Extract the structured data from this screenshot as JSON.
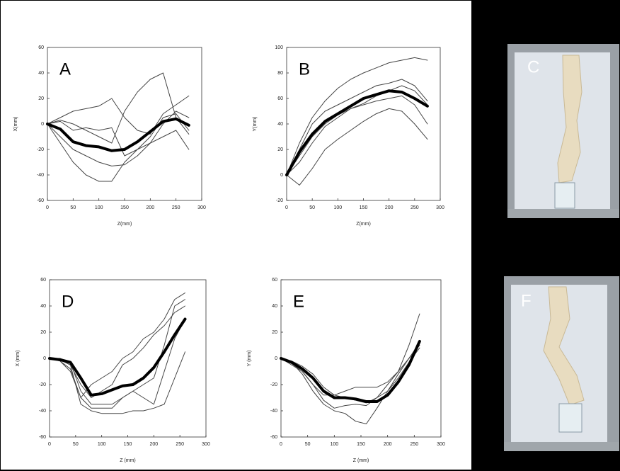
{
  "chart_data": [
    {
      "type": "line",
      "label": "A",
      "xlabel": "Z(mm)",
      "ylabel": "X(mm)",
      "xlim": [
        0,
        300
      ],
      "xticks": [
        0,
        50,
        100,
        150,
        200,
        250,
        300
      ],
      "ylim": [
        -60,
        60
      ],
      "yticks": [
        -60,
        -40,
        -20,
        0,
        20,
        40,
        60
      ],
      "x": [
        0,
        25,
        50,
        75,
        100,
        125,
        150,
        175,
        200,
        225,
        250,
        275
      ],
      "series": [
        {
          "color": "#444444",
          "width": 1,
          "values": [
            0,
            3,
            0,
            -5,
            -10,
            -15,
            10,
            25,
            35,
            40,
            5,
            -8
          ]
        },
        {
          "color": "#444444",
          "width": 1,
          "values": [
            0,
            -15,
            -30,
            -40,
            -45,
            -45,
            -30,
            -20,
            -15,
            -10,
            -5,
            -20
          ]
        },
        {
          "color": "#444444",
          "width": 1,
          "values": [
            0,
            5,
            10,
            12,
            14,
            20,
            5,
            -5,
            -8,
            8,
            15,
            22
          ]
        },
        {
          "color": "#444444",
          "width": 1,
          "values": [
            0,
            -10,
            -20,
            -25,
            -30,
            -33,
            -32,
            -25,
            -15,
            0,
            10,
            5
          ]
        },
        {
          "color": "#444444",
          "width": 1,
          "values": [
            0,
            2,
            -5,
            -3,
            -5,
            -3,
            -25,
            -20,
            -10,
            5,
            8,
            -5
          ]
        },
        {
          "color": "#000000",
          "width": 4,
          "values": [
            0,
            -4,
            -14,
            -17,
            -18,
            -21,
            -20,
            -14,
            -6,
            2,
            4,
            -1
          ]
        }
      ]
    },
    {
      "type": "line",
      "label": "B",
      "xlabel": "Z(mm)",
      "ylabel": "Y(mm)",
      "xlim": [
        0,
        300
      ],
      "xticks": [
        0,
        50,
        100,
        150,
        200,
        250,
        300
      ],
      "ylim": [
        -20,
        100
      ],
      "yticks": [
        -20,
        0,
        20,
        40,
        60,
        80,
        100
      ],
      "x": [
        0,
        25,
        50,
        75,
        100,
        125,
        150,
        175,
        200,
        225,
        250,
        275
      ],
      "series": [
        {
          "color": "#444444",
          "width": 1,
          "values": [
            0,
            25,
            45,
            58,
            68,
            75,
            80,
            84,
            88,
            90,
            92,
            90
          ]
        },
        {
          "color": "#444444",
          "width": 1,
          "values": [
            0,
            -8,
            5,
            20,
            28,
            35,
            42,
            48,
            52,
            50,
            40,
            28
          ]
        },
        {
          "color": "#444444",
          "width": 1,
          "values": [
            0,
            20,
            40,
            50,
            55,
            60,
            65,
            70,
            72,
            75,
            70,
            58
          ]
        },
        {
          "color": "#444444",
          "width": 1,
          "values": [
            0,
            10,
            25,
            38,
            45,
            52,
            55,
            58,
            60,
            62,
            55,
            40
          ]
        },
        {
          "color": "#444444",
          "width": 1,
          "values": [
            0,
            15,
            30,
            40,
            47,
            52,
            56,
            62,
            66,
            70,
            66,
            55
          ]
        },
        {
          "color": "#000000",
          "width": 4,
          "values": [
            0,
            18,
            32,
            42,
            48,
            54,
            60,
            63,
            66,
            65,
            60,
            54
          ]
        }
      ]
    },
    {
      "type": "line",
      "label": "D",
      "xlabel": "Z (mm)",
      "ylabel": "X (mm)",
      "xlim": [
        0,
        300
      ],
      "xticks": [
        0,
        50,
        100,
        150,
        200,
        250,
        300
      ],
      "ylim": [
        -60,
        60
      ],
      "yticks": [
        -60,
        -40,
        -20,
        0,
        20,
        40,
        60
      ],
      "x": [
        0,
        20,
        40,
        60,
        80,
        100,
        120,
        140,
        160,
        180,
        200,
        220,
        240,
        260
      ],
      "series": [
        {
          "color": "#444444",
          "width": 1,
          "values": [
            0,
            -2,
            -10,
            -30,
            -20,
            -15,
            -10,
            0,
            5,
            15,
            20,
            30,
            45,
            50
          ]
        },
        {
          "color": "#444444",
          "width": 1,
          "values": [
            0,
            -1,
            -5,
            -35,
            -40,
            -42,
            -42,
            -42,
            -40,
            -40,
            -38,
            -35,
            -15,
            5
          ]
        },
        {
          "color": "#444444",
          "width": 1,
          "values": [
            0,
            0,
            -3,
            -25,
            -35,
            -35,
            -35,
            -30,
            -25,
            -20,
            -15,
            10,
            40,
            45
          ]
        },
        {
          "color": "#444444",
          "width": 1,
          "values": [
            0,
            -1,
            -5,
            -20,
            -30,
            -25,
            -20,
            -5,
            0,
            8,
            18,
            25,
            35,
            40
          ]
        },
        {
          "color": "#444444",
          "width": 1,
          "values": [
            0,
            -2,
            -8,
            -30,
            -38,
            -38,
            -38,
            -30,
            -25,
            -30,
            -35,
            -10,
            15,
            30
          ]
        },
        {
          "color": "#000000",
          "width": 4,
          "values": [
            0,
            -1,
            -3,
            -15,
            -28,
            -27,
            -24,
            -21,
            -20,
            -15,
            -7,
            5,
            18,
            30
          ]
        }
      ]
    },
    {
      "type": "line",
      "label": "E",
      "xlabel": "Z (mm)",
      "ylabel": "Y (mm)",
      "xlim": [
        0,
        300
      ],
      "xticks": [
        0,
        50,
        100,
        150,
        200,
        250,
        300
      ],
      "ylim": [
        -60,
        60
      ],
      "yticks": [
        -60,
        -40,
        -20,
        0,
        20,
        40,
        60
      ],
      "x": [
        0,
        20,
        40,
        60,
        80,
        100,
        120,
        140,
        160,
        180,
        200,
        220,
        240,
        260
      ],
      "series": [
        {
          "color": "#444444",
          "width": 1,
          "values": [
            0,
            -5,
            -10,
            -20,
            -28,
            -28,
            -25,
            -22,
            -22,
            -22,
            -18,
            -10,
            10,
            34
          ]
        },
        {
          "color": "#444444",
          "width": 1,
          "values": [
            0,
            -3,
            -12,
            -25,
            -35,
            -40,
            -42,
            -48,
            -50,
            -38,
            -25,
            -12,
            0,
            10
          ]
        },
        {
          "color": "#444444",
          "width": 1,
          "values": [
            0,
            -2,
            -6,
            -12,
            -22,
            -28,
            -30,
            -32,
            -34,
            -30,
            -25,
            -15,
            -3,
            8
          ]
        },
        {
          "color": "#444444",
          "width": 1,
          "values": [
            0,
            -4,
            -10,
            -20,
            -32,
            -38,
            -36,
            -35,
            -36,
            -30,
            -20,
            -10,
            0,
            12
          ]
        },
        {
          "color": "#000000",
          "width": 4,
          "values": [
            0,
            -3,
            -8,
            -15,
            -25,
            -30,
            -30,
            -31,
            -33,
            -33,
            -28,
            -18,
            -5,
            13
          ]
        }
      ]
    }
  ],
  "photos": [
    {
      "label": "C"
    },
    {
      "label": "F"
    }
  ]
}
